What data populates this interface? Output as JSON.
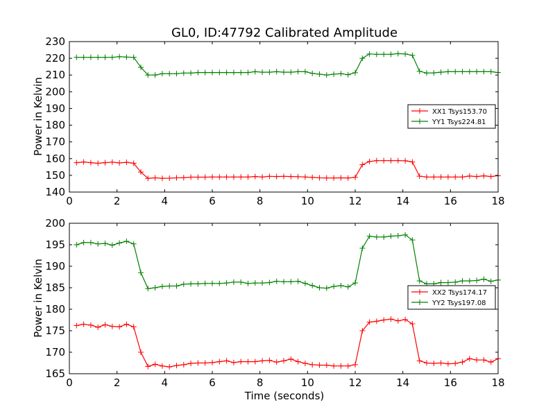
{
  "chart_data": [
    {
      "type": "line",
      "title": "GL0, ID:47792 Calibrated Amplitude",
      "xlabel": "",
      "ylabel": "Power in Kelvin",
      "xlim": [
        0,
        18
      ],
      "ylim": [
        140,
        230
      ],
      "xticks": [
        0,
        2,
        4,
        6,
        8,
        10,
        12,
        14,
        16,
        18
      ],
      "yticks": [
        140,
        150,
        160,
        170,
        180,
        190,
        200,
        210,
        220,
        230
      ],
      "grid": false,
      "legend_position": "right",
      "x": [
        0.3,
        0.6,
        0.9,
        1.2,
        1.5,
        1.8,
        2.1,
        2.4,
        2.7,
        3.0,
        3.3,
        3.6,
        3.9,
        4.2,
        4.5,
        4.8,
        5.1,
        5.4,
        5.7,
        6.0,
        6.3,
        6.6,
        6.9,
        7.2,
        7.5,
        7.8,
        8.1,
        8.4,
        8.7,
        9.0,
        9.3,
        9.6,
        9.9,
        10.2,
        10.5,
        10.8,
        11.1,
        11.4,
        11.7,
        12.0,
        12.3,
        12.6,
        12.9,
        13.2,
        13.5,
        13.8,
        14.1,
        14.4,
        14.7,
        15.0,
        15.3,
        15.6,
        15.9,
        16.2,
        16.5,
        16.8,
        17.1,
        17.4,
        17.7,
        18.0
      ],
      "series": [
        {
          "name": "XX1 Tsys153.70",
          "color": "#ff0000",
          "values": [
            157.6,
            158.0,
            157.6,
            157.2,
            157.6,
            157.9,
            157.4,
            157.8,
            157.2,
            152.0,
            148.2,
            148.5,
            148.2,
            148.3,
            148.5,
            148.6,
            148.9,
            148.9,
            148.9,
            149.0,
            149.0,
            149.0,
            149.0,
            149.0,
            149.0,
            149.3,
            149.0,
            149.4,
            149.3,
            149.4,
            149.3,
            149.2,
            149.0,
            148.8,
            148.5,
            148.4,
            148.4,
            148.5,
            148.4,
            148.8,
            156.4,
            158.3,
            158.8,
            158.8,
            158.8,
            158.8,
            158.7,
            158.0,
            149.5,
            149.0,
            149.0,
            149.0,
            149.0,
            149.0,
            149.0,
            149.6,
            149.3,
            149.7,
            149.3,
            149.8
          ]
        },
        {
          "name": "YY1 Tsys224.81",
          "color": "#008000",
          "values": [
            220.6,
            220.6,
            220.6,
            220.6,
            220.6,
            220.6,
            221.0,
            220.7,
            220.6,
            214.6,
            210.0,
            210.0,
            210.8,
            210.8,
            210.8,
            211.2,
            211.2,
            211.5,
            211.5,
            211.5,
            211.5,
            211.5,
            211.5,
            211.5,
            211.5,
            212.0,
            211.7,
            211.7,
            212.0,
            211.7,
            211.7,
            212.0,
            212.0,
            211.0,
            210.5,
            210.0,
            210.5,
            210.8,
            210.2,
            211.4,
            220.0,
            222.6,
            222.4,
            222.4,
            222.4,
            222.8,
            222.6,
            221.8,
            212.2,
            211.2,
            211.3,
            211.7,
            212.0,
            212.0,
            212.0,
            212.0,
            212.0,
            212.0,
            212.0,
            211.5
          ]
        }
      ]
    },
    {
      "type": "line",
      "title": "",
      "xlabel": "Time (seconds)",
      "ylabel": "Power in Kelvin",
      "xlim": [
        0,
        18
      ],
      "ylim": [
        165,
        200
      ],
      "xticks": [
        0,
        2,
        4,
        6,
        8,
        10,
        12,
        14,
        16,
        18
      ],
      "yticks": [
        165,
        170,
        175,
        180,
        185,
        190,
        195,
        200
      ],
      "grid": false,
      "legend_position": "right",
      "x": [
        0.3,
        0.6,
        0.9,
        1.2,
        1.5,
        1.8,
        2.1,
        2.4,
        2.7,
        3.0,
        3.3,
        3.6,
        3.9,
        4.2,
        4.5,
        4.8,
        5.1,
        5.4,
        5.7,
        6.0,
        6.3,
        6.6,
        6.9,
        7.2,
        7.5,
        7.8,
        8.1,
        8.4,
        8.7,
        9.0,
        9.3,
        9.6,
        9.9,
        10.2,
        10.5,
        10.8,
        11.1,
        11.4,
        11.7,
        12.0,
        12.3,
        12.6,
        12.9,
        13.2,
        13.5,
        13.8,
        14.1,
        14.4,
        14.7,
        15.0,
        15.3,
        15.6,
        15.9,
        16.2,
        16.5,
        16.8,
        17.1,
        17.4,
        17.7,
        18.0
      ],
      "series": [
        {
          "name": "XX2 Tsys174.17",
          "color": "#ff0000",
          "values": [
            176.2,
            176.5,
            176.3,
            175.8,
            176.4,
            176.0,
            175.9,
            176.5,
            175.9,
            170.0,
            166.7,
            167.2,
            166.8,
            166.6,
            166.9,
            167.1,
            167.4,
            167.5,
            167.5,
            167.6,
            167.8,
            168.0,
            167.6,
            167.8,
            167.8,
            167.8,
            168.0,
            168.1,
            167.7,
            168.0,
            168.4,
            167.8,
            167.4,
            167.1,
            167.0,
            167.0,
            166.8,
            166.8,
            166.8,
            167.1,
            175.0,
            177.0,
            177.2,
            177.5,
            177.7,
            177.3,
            177.6,
            176.6,
            168.0,
            167.5,
            167.4,
            167.5,
            167.3,
            167.4,
            167.7,
            168.5,
            168.2,
            168.2,
            167.7,
            168.5
          ]
        },
        {
          "name": "YY2 Tsys197.08",
          "color": "#008000",
          "values": [
            195.0,
            195.5,
            195.5,
            195.2,
            195.3,
            194.9,
            195.4,
            195.8,
            195.2,
            188.5,
            184.8,
            185.0,
            185.3,
            185.4,
            185.4,
            185.8,
            185.9,
            185.9,
            186.0,
            186.0,
            186.0,
            186.1,
            186.3,
            186.3,
            186.0,
            186.1,
            186.1,
            186.2,
            186.5,
            186.4,
            186.4,
            186.5,
            186.0,
            185.5,
            185.0,
            184.9,
            185.3,
            185.5,
            185.2,
            186.1,
            194.2,
            197.0,
            196.8,
            196.8,
            197.0,
            197.1,
            197.3,
            196.1,
            186.6,
            185.9,
            185.9,
            186.2,
            186.2,
            186.3,
            186.6,
            186.6,
            186.7,
            187.0,
            186.5,
            186.8
          ]
        }
      ]
    }
  ]
}
